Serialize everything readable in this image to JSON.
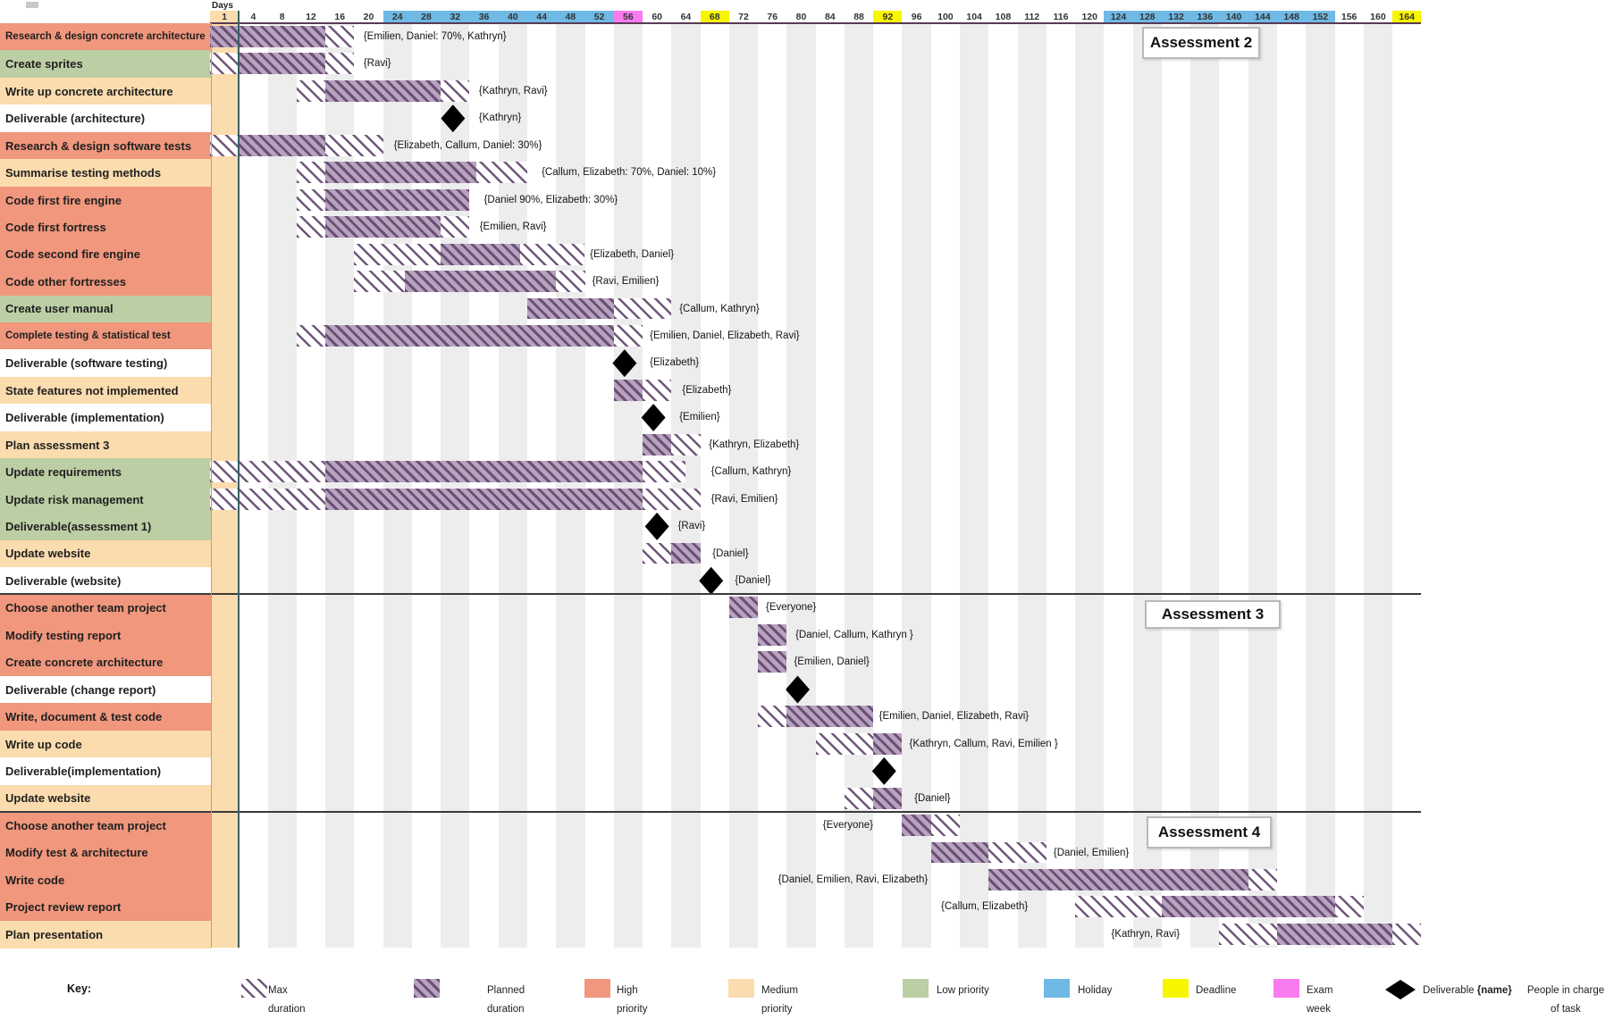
{
  "header": {
    "days_label": "Days"
  },
  "colors": {
    "high": "#F0977D",
    "medium": "#FBDCAE",
    "low": "#BCCEA4",
    "holiday": "#6FB9E4",
    "deadline": "#F8F500",
    "exam": "#FA7BEF",
    "planned_fill": "#B7A2C0",
    "planned_stripe": "#6A5173",
    "max_stripe": "#70567A",
    "shade": "#EDEDED",
    "today_line": "#3A5F66",
    "header_line": "#5A3A55",
    "section_line": "#3A3A3A",
    "label_divider": "#DA9C45",
    "diamond": "#000000"
  },
  "assessments": [
    {
      "label": "Assessment 2"
    },
    {
      "label": "Assessment 3"
    },
    {
      "label": "Assessment 4"
    }
  ],
  "chart_data": {
    "type": "bar",
    "subtype": "gantt",
    "orientation": "horizontal",
    "xlabel": "Days",
    "day_range": [
      0,
      168
    ],
    "day_ticks": [
      1,
      4,
      8,
      12,
      16,
      20,
      24,
      28,
      32,
      36,
      40,
      44,
      48,
      52,
      56,
      60,
      64,
      68,
      72,
      76,
      80,
      84,
      88,
      92,
      96,
      100,
      104,
      108,
      112,
      116,
      120,
      124,
      128,
      132,
      136,
      140,
      144,
      148,
      152,
      156,
      160,
      164
    ],
    "start_tick": 1,
    "holiday_ticks": [
      24,
      28,
      32,
      36,
      40,
      44,
      48,
      52,
      124,
      128,
      132,
      136,
      140,
      144,
      148,
      152
    ],
    "deadline_ticks": [
      68,
      92,
      164
    ],
    "exam_week_ticks": [
      56
    ],
    "section_breaks_after_task": [
      21,
      29
    ],
    "tasks": [
      {
        "name": "Research & design concrete architecture",
        "priority": "high",
        "segments": [
          {
            "kind": "planned",
            "start": 0,
            "end": 16
          },
          {
            "kind": "max",
            "start": 16,
            "end": 20
          }
        ],
        "milestone_day": null,
        "people": "{Emilien, Daniel: 70%, Kathryn}",
        "people_day": 21.3
      },
      {
        "name": "Create sprites",
        "priority": "low",
        "segments": [
          {
            "kind": "max",
            "start": 0,
            "end": 4
          },
          {
            "kind": "planned",
            "start": 4,
            "end": 16
          },
          {
            "kind": "max",
            "start": 16,
            "end": 20
          }
        ],
        "milestone_day": null,
        "people": "{Ravi}",
        "people_day": 21.3
      },
      {
        "name": "Write up concrete architecture",
        "priority": "medium",
        "segments": [
          {
            "kind": "max",
            "start": 12,
            "end": 16
          },
          {
            "kind": "planned",
            "start": 16,
            "end": 32
          },
          {
            "kind": "max",
            "start": 32,
            "end": 36
          }
        ],
        "milestone_day": null,
        "people": "{Kathryn, Ravi}",
        "people_day": 37.3
      },
      {
        "name": "Deliverable (architecture)",
        "priority": "none",
        "segments": [],
        "milestone_day": 33.7,
        "people": "{Kathryn}",
        "people_day": 37.3
      },
      {
        "name": "Research & design software tests",
        "priority": "high",
        "segments": [
          {
            "kind": "max",
            "start": 0,
            "end": 4
          },
          {
            "kind": "planned",
            "start": 4,
            "end": 16
          },
          {
            "kind": "max",
            "start": 16,
            "end": 24
          }
        ],
        "milestone_day": null,
        "people": "{Elizabeth, Callum, Daniel: 30%}",
        "people_day": 25.5
      },
      {
        "name": "Summarise testing methods",
        "priority": "medium",
        "segments": [
          {
            "kind": "max",
            "start": 12,
            "end": 16
          },
          {
            "kind": "planned",
            "start": 16,
            "end": 37
          },
          {
            "kind": "max",
            "start": 37,
            "end": 44
          }
        ],
        "milestone_day": null,
        "people": "{Callum, Elizabeth: 70%, Daniel: 10%}",
        "people_day": 46
      },
      {
        "name": "Code first fire engine",
        "priority": "high",
        "segments": [
          {
            "kind": "max",
            "start": 12,
            "end": 16
          },
          {
            "kind": "planned",
            "start": 16,
            "end": 36
          }
        ],
        "milestone_day": null,
        "people": "{Daniel 90%, Elizabeth: 30%}",
        "people_day": 38
      },
      {
        "name": "Code first fortress",
        "priority": "high",
        "segments": [
          {
            "kind": "max",
            "start": 12,
            "end": 16
          },
          {
            "kind": "planned",
            "start": 16,
            "end": 32
          },
          {
            "kind": "max",
            "start": 32,
            "end": 36
          }
        ],
        "milestone_day": null,
        "people": "{Emilien, Ravi}",
        "people_day": 37.4
      },
      {
        "name": "Code second fire engine",
        "priority": "high",
        "segments": [
          {
            "kind": "max",
            "start": 20,
            "end": 32
          },
          {
            "kind": "planned",
            "start": 32,
            "end": 43
          },
          {
            "kind": "max",
            "start": 43,
            "end": 52
          }
        ],
        "milestone_day": null,
        "people": "{Elizabeth, Daniel}",
        "people_day": 52.7
      },
      {
        "name": "Code other fortresses",
        "priority": "high",
        "segments": [
          {
            "kind": "max",
            "start": 20,
            "end": 27
          },
          {
            "kind": "planned",
            "start": 27,
            "end": 48
          },
          {
            "kind": "max",
            "start": 48,
            "end": 52
          }
        ],
        "milestone_day": null,
        "people": "{Ravi, Emilien}",
        "people_day": 53
      },
      {
        "name": "Create user manual",
        "priority": "low",
        "segments": [
          {
            "kind": "planned",
            "start": 44,
            "end": 56
          },
          {
            "kind": "max",
            "start": 56,
            "end": 64
          }
        ],
        "milestone_day": null,
        "people": "{Callum, Kathryn}",
        "people_day": 65.1
      },
      {
        "name": "Complete testing & statistical test",
        "priority": "high",
        "segments": [
          {
            "kind": "max",
            "start": 12,
            "end": 16
          },
          {
            "kind": "planned",
            "start": 16,
            "end": 56
          },
          {
            "kind": "max",
            "start": 56,
            "end": 60
          }
        ],
        "milestone_day": null,
        "people": "{Emilien, Daniel, Elizabeth, Ravi}",
        "people_day": 61
      },
      {
        "name": "Deliverable (software testing)",
        "priority": "none",
        "segments": [],
        "milestone_day": 57.5,
        "people": "{Elizabeth}",
        "people_day": 61
      },
      {
        "name": "State features not implemented",
        "priority": "medium",
        "segments": [
          {
            "kind": "planned",
            "start": 56,
            "end": 60
          },
          {
            "kind": "max",
            "start": 60,
            "end": 64
          }
        ],
        "milestone_day": null,
        "people": "{Elizabeth}",
        "people_day": 65.5
      },
      {
        "name": "Deliverable (implementation)",
        "priority": "none",
        "segments": [],
        "milestone_day": 61.5,
        "people": "{Emilien}",
        "people_day": 65.1
      },
      {
        "name": "Plan assessment 3",
        "priority": "medium",
        "segments": [
          {
            "kind": "planned",
            "start": 60,
            "end": 64
          },
          {
            "kind": "max",
            "start": 64,
            "end": 68
          }
        ],
        "milestone_day": null,
        "people": "{Kathryn, Elizabeth}",
        "people_day": 69.2
      },
      {
        "name": "Update requirements",
        "priority": "low",
        "segments": [
          {
            "kind": "max",
            "start": 0,
            "end": 16
          },
          {
            "kind": "planned",
            "start": 16,
            "end": 60
          },
          {
            "kind": "max",
            "start": 60,
            "end": 66
          }
        ],
        "milestone_day": null,
        "people": "{Callum, Kathryn}",
        "people_day": 69.5
      },
      {
        "name": "Update risk management",
        "priority": "low",
        "segments": [
          {
            "kind": "max",
            "start": 0,
            "end": 16
          },
          {
            "kind": "planned",
            "start": 16,
            "end": 60
          },
          {
            "kind": "max",
            "start": 60,
            "end": 68
          }
        ],
        "milestone_day": null,
        "people": "{Ravi, Emilien}",
        "people_day": 69.5
      },
      {
        "name": "Deliverable(assessment 1)",
        "priority": "low",
        "segments": [],
        "milestone_day": 62,
        "people": "{Ravi}",
        "people_day": 64.9
      },
      {
        "name": "Update website",
        "priority": "medium",
        "segments": [
          {
            "kind": "max",
            "start": 60,
            "end": 64
          },
          {
            "kind": "planned",
            "start": 64,
            "end": 68
          }
        ],
        "milestone_day": null,
        "people": "{Daniel}",
        "people_day": 69.7
      },
      {
        "name": "Deliverable (website)",
        "priority": "none",
        "segments": [],
        "milestone_day": 69.5,
        "people": "{Daniel}",
        "people_day": 72.8
      },
      {
        "name": "Choose another team project",
        "priority": "high",
        "segments": [
          {
            "kind": "planned",
            "start": 72,
            "end": 76
          }
        ],
        "milestone_day": null,
        "people": "{Everyone}",
        "people_day": 77.1
      },
      {
        "name": "Modify testing report",
        "priority": "high",
        "segments": [
          {
            "kind": "planned",
            "start": 76,
            "end": 80
          }
        ],
        "milestone_day": null,
        "people": "{Daniel, Callum, Kathryn }",
        "people_day": 81.2
      },
      {
        "name": "Create concrete architecture",
        "priority": "high",
        "segments": [
          {
            "kind": "planned",
            "start": 76,
            "end": 80
          }
        ],
        "milestone_day": null,
        "people": "{Emilien, Daniel}",
        "people_day": 81
      },
      {
        "name": "Deliverable (change report)",
        "priority": "none",
        "segments": [],
        "milestone_day": 81.5,
        "people": null,
        "people_day": null
      },
      {
        "name": "Write, document & test code",
        "priority": "high",
        "segments": [
          {
            "kind": "max",
            "start": 76,
            "end": 80
          },
          {
            "kind": "planned",
            "start": 80,
            "end": 92
          }
        ],
        "milestone_day": null,
        "people": "{Emilien, Daniel, Elizabeth, Ravi}",
        "people_day": 92.8
      },
      {
        "name": "Write up code",
        "priority": "medium",
        "segments": [
          {
            "kind": "max",
            "start": 84,
            "end": 92
          },
          {
            "kind": "planned",
            "start": 92,
            "end": 96
          }
        ],
        "milestone_day": null,
        "people": "{Kathryn, Callum, Ravi, Emilien }",
        "people_day": 97
      },
      {
        "name": "Deliverable(implementation)",
        "priority": "none",
        "segments": [],
        "milestone_day": 93.5,
        "people": null,
        "people_day": null
      },
      {
        "name": "Update website",
        "priority": "medium",
        "segments": [
          {
            "kind": "max",
            "start": 88,
            "end": 92
          },
          {
            "kind": "planned",
            "start": 92,
            "end": 96
          }
        ],
        "milestone_day": null,
        "people": "{Daniel}",
        "people_day": 97.7
      },
      {
        "name": "Choose another team project",
        "priority": "high",
        "segments": [
          {
            "kind": "planned",
            "start": 96,
            "end": 100
          },
          {
            "kind": "max",
            "start": 100,
            "end": 104
          }
        ],
        "milestone_day": null,
        "people": "{Everyone}",
        "people_day": 85
      },
      {
        "name": "Modify test & architecture",
        "priority": "high",
        "segments": [
          {
            "kind": "planned",
            "start": 100,
            "end": 108
          },
          {
            "kind": "max",
            "start": 108,
            "end": 116
          }
        ],
        "milestone_day": null,
        "people": "{Daniel, Emilien}",
        "people_day": 117
      },
      {
        "name": "Write code",
        "priority": "high",
        "segments": [
          {
            "kind": "planned",
            "start": 108,
            "end": 144
          },
          {
            "kind": "max",
            "start": 144,
            "end": 148
          }
        ],
        "milestone_day": null,
        "people": "{Daniel, Emilien, Ravi, Elizabeth}",
        "people_day": 78.8
      },
      {
        "name": "Project review report",
        "priority": "high",
        "segments": [
          {
            "kind": "max",
            "start": 120,
            "end": 132
          },
          {
            "kind": "planned",
            "start": 132,
            "end": 156
          },
          {
            "kind": "max",
            "start": 156,
            "end": 160
          }
        ],
        "milestone_day": null,
        "people": "{Callum, Elizabeth}",
        "people_day": 101.4
      },
      {
        "name": "Plan presentation",
        "priority": "medium",
        "segments": [
          {
            "kind": "max",
            "start": 140,
            "end": 148
          },
          {
            "kind": "planned",
            "start": 148,
            "end": 164
          },
          {
            "kind": "max",
            "start": 164,
            "end": 168
          }
        ],
        "milestone_day": null,
        "people": "{Kathryn, Ravi}",
        "people_day": 125
      }
    ]
  },
  "key": {
    "title": "Key:",
    "items": [
      {
        "swatch": "max",
        "lines": [
          "Max",
          "duration"
        ]
      },
      {
        "swatch": "planned",
        "lines": [
          "Planned",
          "duration"
        ]
      },
      {
        "swatch": "high",
        "lines": [
          "High",
          "priority"
        ]
      },
      {
        "swatch": "medium",
        "lines": [
          "Medium",
          "priority"
        ]
      },
      {
        "swatch": "low",
        "lines": [
          "Low priority"
        ]
      },
      {
        "swatch": "holiday",
        "lines": [
          "Holiday"
        ]
      },
      {
        "swatch": "deadline",
        "lines": [
          "Deadline"
        ]
      },
      {
        "swatch": "exam",
        "lines": [
          "Exam",
          "week"
        ]
      },
      {
        "swatch": "diamond",
        "lines": [
          "Deliverable"
        ],
        "bold_suffix": "{name}"
      },
      {
        "swatch": null,
        "lines": [
          "People in charge",
          "of task"
        ],
        "center": true
      }
    ]
  }
}
